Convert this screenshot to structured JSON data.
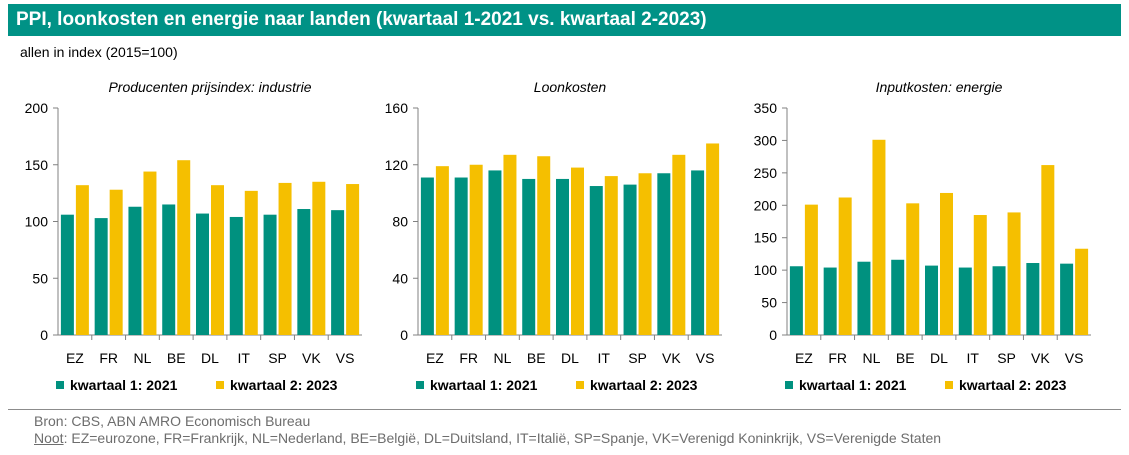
{
  "header": {
    "title": "PPI, loonkosten en energie naar landen (kwartaal 1-2021 vs. kwartaal 2-2023)",
    "subtitle": "allen in index (2015=100)"
  },
  "footer": {
    "source": "Bron: CBS, ABN AMRO Economisch Bureau",
    "note_label": "Noot",
    "note_text": ": EZ=eurozone, FR=Frankrijk, NL=Nederland, BE=België, DL=Duitsland, IT=Italië, SP=Spanje, VK=Verenigd Koninkrijk, VS=Verenigde Staten"
  },
  "colors": {
    "series1": "#00917f",
    "series2": "#f5bf00",
    "title_bg": "#009286"
  },
  "chart_data": [
    {
      "type": "bar",
      "title": "Producenten prijsindex: industrie",
      "categories": [
        "EZ",
        "FR",
        "NL",
        "BE",
        "DL",
        "IT",
        "SP",
        "VK",
        "VS"
      ],
      "series": [
        {
          "name": "kwartaal 1: 2021",
          "values": [
            106,
            103,
            113,
            115,
            107,
            104,
            106,
            111,
            110
          ]
        },
        {
          "name": "kwartaal 2: 2023",
          "values": [
            132,
            128,
            144,
            154,
            132,
            127,
            134,
            135,
            133
          ]
        }
      ],
      "ylim": [
        0,
        200
      ],
      "yticks": [
        0,
        50,
        100,
        150,
        200
      ],
      "grid": false,
      "legend": "bottom"
    },
    {
      "type": "bar",
      "title": "Loonkosten",
      "categories": [
        "EZ",
        "FR",
        "NL",
        "BE",
        "DL",
        "IT",
        "SP",
        "VK",
        "VS"
      ],
      "series": [
        {
          "name": "kwartaal 1: 2021",
          "values": [
            111,
            111,
            116,
            110,
            110,
            105,
            106,
            114,
            116
          ]
        },
        {
          "name": "kwartaal 2: 2023",
          "values": [
            119,
            120,
            127,
            126,
            118,
            112,
            114,
            127,
            135
          ]
        }
      ],
      "ylim": [
        0,
        160
      ],
      "yticks": [
        0,
        40,
        80,
        120,
        160
      ],
      "grid": false,
      "legend": "bottom"
    },
    {
      "type": "bar",
      "title": "Inputkosten: energie",
      "categories": [
        "EZ",
        "FR",
        "NL",
        "BE",
        "DL",
        "IT",
        "SP",
        "VK",
        "VS"
      ],
      "series": [
        {
          "name": "kwartaal 1: 2021",
          "values": [
            106,
            104,
            113,
            116,
            107,
            104,
            106,
            111,
            110
          ]
        },
        {
          "name": "kwartaal 2: 2023",
          "values": [
            201,
            212,
            301,
            203,
            219,
            185,
            189,
            262,
            133
          ]
        }
      ],
      "ylim": [
        0,
        350
      ],
      "yticks": [
        0,
        50,
        100,
        150,
        200,
        250,
        300,
        350
      ],
      "grid": false,
      "legend": "bottom"
    }
  ]
}
